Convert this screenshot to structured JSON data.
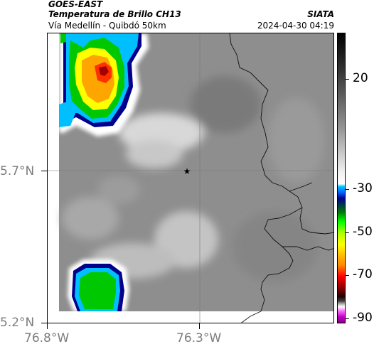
{
  "header": {
    "satellite": "GOES-EAST",
    "product": "Temperatura de Brillo CH13",
    "region": "Vía Medellín - Quibdó 50km",
    "organization": "SIATA",
    "datetime": "2024-04-30 04:19"
  },
  "map": {
    "x_ticks": [
      "76.8°W",
      "76.3°W"
    ],
    "y_ticks": [
      "5.7°N",
      "5.2°N"
    ],
    "marker_icon": "star-icon"
  },
  "colorbar": {
    "labels": [
      "20",
      "-30",
      "-50",
      "-70",
      "-90"
    ],
    "colors": [
      "#7f007f",
      "#ff00ff",
      "#ffffff",
      "#8b0000",
      "#ff0000",
      "#ffa500",
      "#ffff00",
      "#00ff00",
      "#008000",
      "#00008b",
      "#00bfff",
      "#ffffff",
      "#808080",
      "#000000"
    ]
  }
}
